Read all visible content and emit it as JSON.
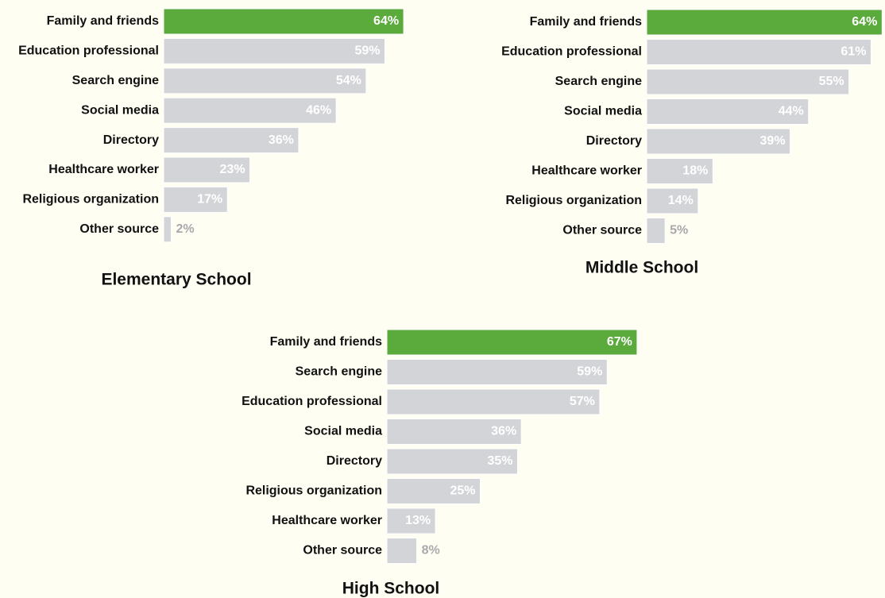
{
  "chart_data": [
    {
      "type": "bar",
      "title": "Elementary School",
      "categories": [
        "Family and friends",
        "Education professional",
        "Search engine",
        "Social media",
        "Directory",
        "Healthcare worker",
        "Religious organization",
        "Other source"
      ],
      "values": [
        64,
        59,
        54,
        46,
        36,
        23,
        17,
        2
      ],
      "value_labels": [
        "64%",
        "59%",
        "54%",
        "46%",
        "36%",
        "23%",
        "17%",
        "2%"
      ],
      "colors": [
        "#5aaa3c",
        "#d3d4d7",
        "#d3d4d7",
        "#d3d4d7",
        "#d3d4d7",
        "#d3d4d7",
        "#d3d4d7",
        "#d3d4d7"
      ]
    },
    {
      "type": "bar",
      "title": "Middle School",
      "categories": [
        "Family and friends",
        "Education professional",
        "Search engine",
        "Social media",
        "Directory",
        "Healthcare worker",
        "Religious organization",
        "Other source"
      ],
      "values": [
        64,
        61,
        55,
        44,
        39,
        18,
        14,
        5
      ],
      "value_labels": [
        "64%",
        "61%",
        "55%",
        "44%",
        "39%",
        "18%",
        "14%",
        "5%"
      ],
      "colors": [
        "#5aaa3c",
        "#d3d4d7",
        "#d3d4d7",
        "#d3d4d7",
        "#d3d4d7",
        "#d3d4d7",
        "#d3d4d7",
        "#d3d4d7"
      ]
    },
    {
      "type": "bar",
      "title": "High School",
      "categories": [
        "Family and friends",
        "Search engine",
        "Education professional",
        "Social media",
        "Directory",
        "Religious organization",
        "Healthcare worker",
        "Other source"
      ],
      "values": [
        67,
        59,
        57,
        36,
        35,
        25,
        13,
        8
      ],
      "value_labels": [
        "67%",
        "59%",
        "57%",
        "36%",
        "35%",
        "25%",
        "13%",
        "8%"
      ],
      "colors": [
        "#5aaa3c",
        "#d3d4d7",
        "#d3d4d7",
        "#d3d4d7",
        "#d3d4d7",
        "#d3d4d7",
        "#d3d4d7",
        "#d3d4d7"
      ]
    }
  ]
}
